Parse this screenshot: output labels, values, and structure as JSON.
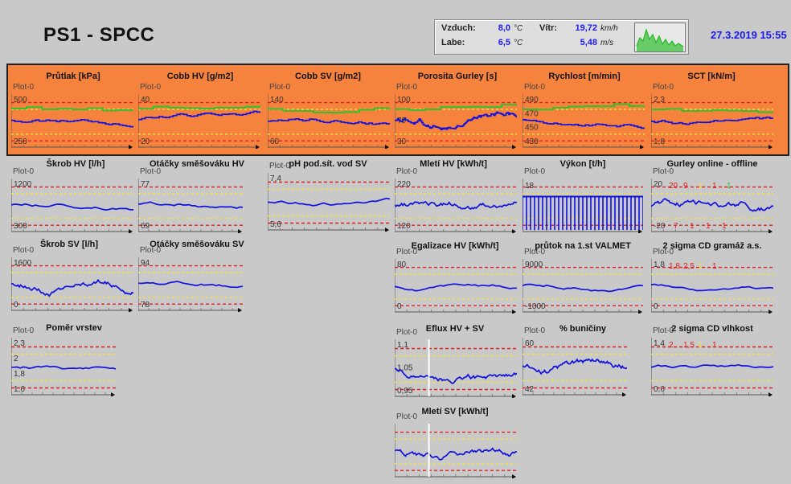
{
  "app": {
    "title": "PS1 - SPCC",
    "date": "27.3.2019 15:55"
  },
  "weather": {
    "air_label": "Vzduch:",
    "air_value": "8,0",
    "air_unit": "°C",
    "river_label": "Labe:",
    "river_value": "6,5",
    "river_unit": "°C",
    "wind_label": "Vítr:",
    "wind_kmh": "19,72",
    "wind_kmh_unit": "km/h",
    "wind_ms": "5,48",
    "wind_ms_unit": "m/s"
  },
  "colors": {
    "orange_bg": "#f5833e",
    "trace": "#1010e0",
    "limit_red": "#e02020",
    "limit_yellow": "#f2e23a",
    "target_green": "#30c030",
    "date_blue": "#1a1aee"
  },
  "plot_label": "Plot-0",
  "panels": [
    {
      "id": "prutlak",
      "title": "Průtlak [kPa]",
      "labels": [
        "500",
        "250"
      ]
    },
    {
      "id": "cobb-hv",
      "title": "Cobb HV [g/m2]",
      "labels": [
        "40",
        "20"
      ]
    },
    {
      "id": "cobb-sv",
      "title": "Cobb SV [g/m2]",
      "labels": [
        "140",
        "60"
      ]
    },
    {
      "id": "porosita",
      "title": "Porosita Gurley [s]",
      "labels": [
        "100",
        "70",
        "30"
      ]
    },
    {
      "id": "rychlost",
      "title": "Rychlost [m/min]",
      "labels": [
        "490",
        "470",
        "450",
        "430"
      ]
    },
    {
      "id": "sct",
      "title": "SCT [kN/m]",
      "labels": [
        "2,3",
        "1,8"
      ]
    },
    {
      "id": "skrob-hv",
      "title": "Škrob HV [l/h]",
      "labels": [
        "1200",
        "300"
      ]
    },
    {
      "id": "otacky-hv",
      "title": "Otáčky směšováku HV",
      "labels": [
        "77",
        "69"
      ]
    },
    {
      "id": "ph",
      "title": "pH pod.sít. vod SV",
      "labels": [
        "7,4",
        "5,6"
      ]
    },
    {
      "id": "mleti-hv",
      "title": "Mletí HV [kWh/t]",
      "labels": [
        "220",
        "120"
      ]
    },
    {
      "id": "vykon",
      "title": "Výkon [t/h]",
      "labels": [
        "18"
      ]
    },
    {
      "id": "gurley-online",
      "title": "Gurley online - offline",
      "labels": [
        "20",
        "-20"
      ],
      "markers": [
        "20",
        "9",
        "1",
        "1",
        "1"
      ],
      "markers_bottom": [
        "7",
        "1",
        "1",
        "1"
      ]
    },
    {
      "id": "skrob-sv",
      "title": "Škrob SV [l/h]",
      "labels": [
        "1600",
        "0"
      ]
    },
    {
      "id": "otacky-sv",
      "title": "Otáčky směšováku SV",
      "labels": [
        "94",
        "78"
      ]
    },
    {
      "id": "egalizace",
      "title": "Egalizace HV [kWh/t]",
      "labels": [
        "80",
        "0"
      ]
    },
    {
      "id": "prutok-valmet",
      "title": "průtok na 1.st VALMET",
      "labels": [
        "9000",
        "-1000"
      ]
    },
    {
      "id": "sigma-gramaz",
      "title": "2 sigma CD gramáž a.s.",
      "labels": [
        "1,8",
        "0"
      ],
      "markers": [
        "1,8",
        "2,5",
        "1",
        "1"
      ]
    },
    {
      "id": "pomer-vrstev",
      "title": "Poměr vrstev",
      "labels": [
        "2,3",
        "2",
        "1,8",
        "1,6"
      ]
    },
    {
      "id": "eflux",
      "title": "Eflux HV + SV",
      "labels": [
        "1,1",
        "1,05",
        "0,95"
      ]
    },
    {
      "id": "buniciny",
      "title": "% buničiny",
      "labels": [
        "60",
        "42"
      ]
    },
    {
      "id": "sigma-vlhkost",
      "title": "2 sigma CD vlhkost",
      "labels": [
        "1,4",
        "0,6"
      ],
      "markers": [
        "2",
        "1,5",
        "1",
        "1"
      ]
    },
    {
      "id": "mleti-sv",
      "title": "Mletí SV [kWh/t]",
      "labels": []
    }
  ]
}
